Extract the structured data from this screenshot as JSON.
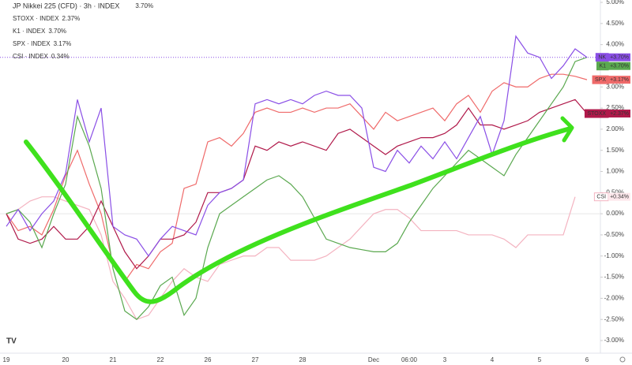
{
  "chart_data": {
    "type": "line",
    "categories": [
      "19",
      null,
      null,
      null,
      null,
      "20",
      null,
      null,
      null,
      "21",
      null,
      null,
      null,
      "22",
      null,
      null,
      null,
      "26",
      null,
      null,
      null,
      "27",
      null,
      null,
      null,
      "28",
      null,
      null,
      null,
      null,
      null,
      "Dec",
      null,
      null,
      "06:00",
      null,
      null,
      "3",
      null,
      null,
      null,
      "4",
      null,
      null,
      null,
      "5",
      null,
      null,
      null,
      "6"
    ],
    "ylim": [
      -3,
      5
    ],
    "yticks": [
      {
        "value": 5,
        "label": "5.00%"
      },
      {
        "value": 4.5,
        "label": "4.50%"
      },
      {
        "value": 4,
        "label": "4.00%"
      },
      {
        "value": 3.5,
        "label": "3.50%"
      },
      {
        "value": 3,
        "label": "3.00%"
      },
      {
        "value": 2.5,
        "label": "2.50%"
      },
      {
        "value": 2,
        "label": "2.00%"
      },
      {
        "value": 1.5,
        "label": "1.50%"
      },
      {
        "value": 1,
        "label": "1.00%"
      },
      {
        "value": 0.5,
        "label": "0.50%"
      },
      {
        "value": 0,
        "label": "0.00%"
      },
      {
        "value": -0.5,
        "label": "-0.50%"
      },
      {
        "value": -1,
        "label": "-1.00%"
      },
      {
        "value": -1.5,
        "label": "-1.50%"
      },
      {
        "value": -2,
        "label": "-2.00%"
      },
      {
        "value": -2.5,
        "label": "-2.50%"
      },
      {
        "value": -3,
        "label": "-3.00%"
      }
    ],
    "grid": false,
    "series": [
      {
        "name": "JP Nikkei 225 (CFD) · 3h · INDEX",
        "legend_value": "3.70%",
        "tag": "NK",
        "tag_value": "+3.70%",
        "color": "#8a4fe6",
        "values": [
          -0.3,
          0.1,
          -0.4,
          0.0,
          0.3,
          0.95,
          2.7,
          1.7,
          2.5,
          -0.3,
          -0.5,
          -0.6,
          -1.0,
          -0.6,
          -0.3,
          -0.4,
          -0.5,
          0.2,
          0.5,
          0.6,
          0.8,
          2.6,
          2.7,
          2.6,
          2.7,
          2.6,
          2.8,
          2.9,
          2.8,
          2.8,
          2.5,
          1.1,
          1.0,
          1.5,
          1.2,
          1.6,
          1.3,
          1.7,
          1.3,
          1.8,
          2.3,
          1.4,
          2.2,
          4.2,
          3.8,
          3.7,
          3.2,
          3.5,
          3.9,
          3.7
        ]
      },
      {
        "name": "STOXX · INDEX",
        "legend_value": "2.37%",
        "tag": "STOXX",
        "tag_value": "+2.37%",
        "color": "#b0194a",
        "values": [
          0.0,
          -0.6,
          -0.7,
          -0.6,
          -0.3,
          -0.6,
          -0.6,
          -0.3,
          0.3,
          -0.3,
          -0.9,
          -1.3,
          -1.0,
          -0.6,
          -0.6,
          -0.5,
          -0.2,
          0.5,
          0.5,
          0.6,
          0.8,
          1.6,
          1.5,
          1.7,
          1.6,
          1.7,
          1.6,
          1.5,
          1.9,
          2.0,
          1.8,
          1.6,
          1.4,
          1.6,
          1.7,
          1.8,
          1.8,
          1.9,
          2.1,
          2.5,
          2.1,
          2.1,
          2.0,
          2.1,
          2.2,
          2.4,
          2.5,
          2.6,
          2.7,
          2.37
        ]
      },
      {
        "name": "K1 · INDEX",
        "legend_value": "3.70%",
        "tag": "K1",
        "tag_value": "+3.70%",
        "color": "#5aa84f",
        "values": [
          0.0,
          0.1,
          -0.2,
          -0.8,
          0.0,
          0.7,
          2.3,
          1.6,
          0.6,
          -1.3,
          -2.3,
          -2.5,
          -2.2,
          -1.7,
          -1.5,
          -2.4,
          -2.0,
          -0.8,
          0.0,
          0.2,
          0.4,
          0.6,
          0.8,
          0.9,
          0.7,
          0.4,
          -0.1,
          -0.6,
          -0.7,
          -0.8,
          -0.85,
          -0.9,
          -0.9,
          -0.7,
          -0.2,
          0.2,
          0.6,
          0.9,
          1.2,
          1.5,
          1.3,
          1.1,
          0.9,
          1.4,
          1.8,
          2.2,
          2.6,
          3.0,
          3.6,
          3.7
        ]
      },
      {
        "name": "SPX · INDEX",
        "legend_value": "3.17%",
        "tag": "SPX",
        "tag_value": "+3.17%",
        "color": "#ef6a6a",
        "values": [
          0.0,
          -0.4,
          -0.3,
          -0.5,
          0.1,
          0.9,
          1.5,
          0.7,
          0.0,
          -1.2,
          -1.6,
          -1.2,
          -1.3,
          -0.9,
          -0.7,
          0.6,
          0.7,
          1.7,
          1.8,
          1.6,
          1.9,
          2.4,
          2.5,
          2.4,
          2.4,
          2.5,
          2.4,
          2.5,
          2.5,
          2.6,
          2.3,
          2.0,
          2.4,
          2.2,
          2.3,
          2.4,
          2.5,
          2.2,
          2.6,
          2.8,
          2.4,
          2.9,
          3.1,
          3.0,
          3.0,
          3.2,
          3.3,
          3.3,
          3.25,
          3.17
        ]
      },
      {
        "name": "CSI · INDEX",
        "legend_value": "0.34%",
        "tag": "CSI",
        "tag_value": "+0.34%",
        "color": "#f4b3c0",
        "values": [
          0.0,
          0.1,
          0.3,
          0.4,
          0.4,
          0.3,
          0.2,
          0.1,
          -0.5,
          -1.6,
          -2.0,
          -2.5,
          -2.4,
          -2.0,
          -1.6,
          -1.3,
          -1.5,
          -1.6,
          -1.2,
          -1.1,
          -1.0,
          -1.0,
          -0.8,
          -0.8,
          -1.1,
          -1.1,
          -1.1,
          -1.0,
          -0.8,
          -0.6,
          -0.3,
          0.0,
          0.1,
          0.1,
          -0.1,
          -0.4,
          -0.4,
          -0.4,
          -0.4,
          -0.5,
          -0.5,
          -0.5,
          -0.6,
          -0.8,
          -0.5,
          -0.5,
          -0.5,
          -0.5,
          0.4,
          null
        ]
      }
    ]
  }
}
